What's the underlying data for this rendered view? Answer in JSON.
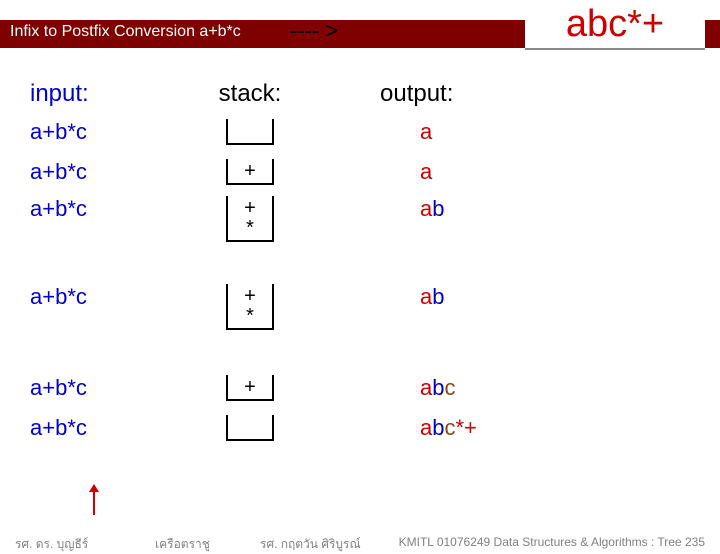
{
  "header": {
    "title": "Infix to Postfix Conversion  a+b*c",
    "arrow": "---- >",
    "result": "abc*+"
  },
  "columns": {
    "input_hdr": "input:",
    "stack_hdr": "stack:",
    "output_hdr": "output:"
  },
  "rows": [
    {
      "input": "a+b*c",
      "stack_lines": [
        ""
      ],
      "out_a": "a",
      "out_b": "",
      "out_c": "",
      "out_tail": ""
    },
    {
      "input": "a+b*c",
      "stack_lines": [
        "+"
      ],
      "out_a": "a",
      "out_b": "",
      "out_c": "",
      "out_tail": ""
    },
    {
      "input": "a+b*c",
      "stack_lines": [
        "+",
        "*"
      ],
      "out_a": "a",
      "out_b": "b",
      "out_c": "",
      "out_tail": "",
      "tall": true
    },
    {
      "input": "a+b*c",
      "stack_lines": [
        "+",
        "*"
      ],
      "out_a": "a",
      "out_b": "b",
      "out_c": "",
      "out_tail": "",
      "tall": true,
      "gap_before": true
    },
    {
      "input": "a+b*c",
      "stack_lines": [
        "+"
      ],
      "out_a": "a",
      "out_b": "b",
      "out_c": "c",
      "out_tail": "",
      "gap_before": true
    },
    {
      "input": "a+b*c",
      "stack_lines": [
        ""
      ],
      "out_a": "a",
      "out_b": "b",
      "out_c": "c",
      "out_tail": "*+"
    }
  ],
  "footer": {
    "f1": "รศ. ดร. บุญธีร์",
    "f2": "เครือตราชู",
    "f3": "รศ. กฤตวัน   ศิริบูรณ์",
    "f4": "KMITL    01076249 Data Structures & Algorithms : Tree 235"
  },
  "colors": {
    "red": "#cc0000",
    "blue": "#0000cc",
    "brown": "#8b4513",
    "header_bg": "#7f0000",
    "footer_text": "#808080"
  }
}
